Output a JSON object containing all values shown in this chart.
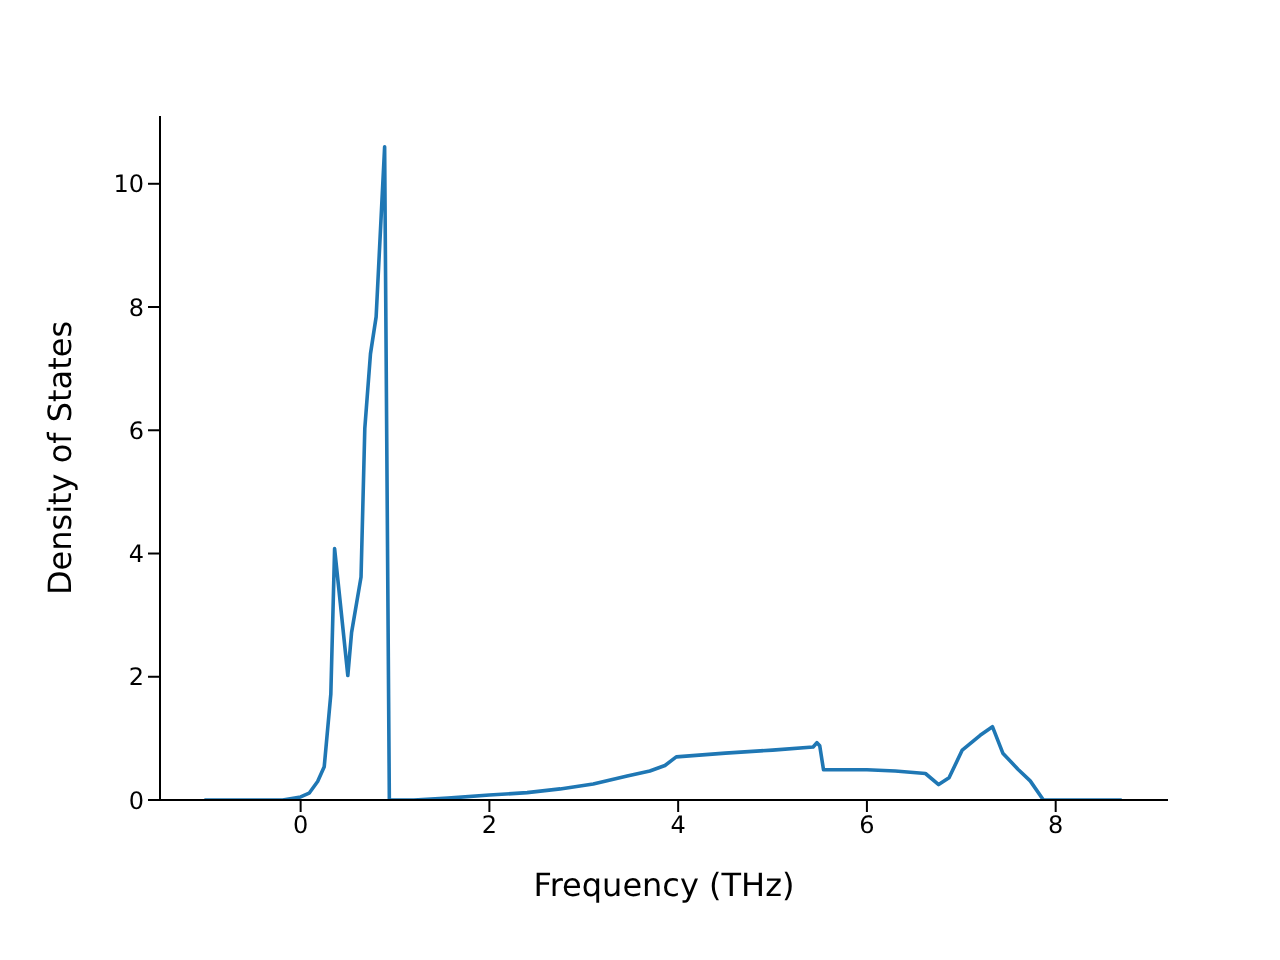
{
  "chart_data": {
    "type": "line",
    "xlabel": "Frequency (THz)",
    "ylabel": "Density of States",
    "xlim": [
      -1.49,
      9.19
    ],
    "ylim": [
      0,
      11.1
    ],
    "xticks": [
      0,
      2,
      4,
      6,
      8
    ],
    "yticks": [
      0,
      2,
      4,
      6,
      8,
      10
    ],
    "grid": false,
    "legend": false,
    "marker": "none",
    "line_style": "solid",
    "series": [
      {
        "color": "#1f77b4",
        "x": [
          -1.02,
          -0.5,
          -0.19,
          0.0,
          0.09,
          0.18,
          0.25,
          0.32,
          0.36,
          0.42,
          0.5,
          0.54,
          0.64,
          0.68,
          0.74,
          0.8,
          0.89,
          0.94,
          1.2,
          1.56,
          2.0,
          2.4,
          2.75,
          3.1,
          3.46,
          3.7,
          3.86,
          3.98,
          4.5,
          5.0,
          5.43,
          5.47,
          5.5,
          5.54,
          6.0,
          6.3,
          6.62,
          6.76,
          6.87,
          7.01,
          7.2,
          7.33,
          7.44,
          7.6,
          7.73,
          7.87,
          8.2,
          8.7
        ],
        "values": [
          0,
          0,
          0,
          0.05,
          0.11,
          0.3,
          0.54,
          1.72,
          4.08,
          3.2,
          2.02,
          2.72,
          3.62,
          6.03,
          7.24,
          7.84,
          10.6,
          0,
          0,
          0.03,
          0.08,
          0.12,
          0.18,
          0.26,
          0.39,
          0.47,
          0.56,
          0.7,
          0.76,
          0.81,
          0.86,
          0.93,
          0.88,
          0.49,
          0.49,
          0.47,
          0.43,
          0.25,
          0.36,
          0.81,
          1.05,
          1.19,
          0.76,
          0.5,
          0.31,
          0,
          0,
          0
        ]
      }
    ]
  }
}
